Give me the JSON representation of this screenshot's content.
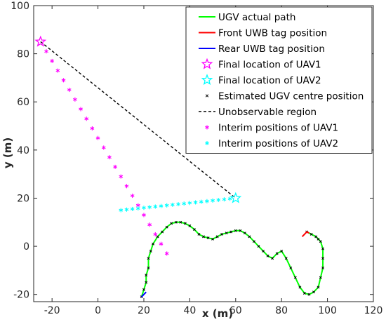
{
  "chart_data": {
    "type": "scatter",
    "xlabel": "x (m)",
    "ylabel": "y (m)",
    "xlim": [
      -28,
      120
    ],
    "ylim": [
      -23,
      100
    ],
    "xticks": [
      -20,
      0,
      20,
      40,
      60,
      80,
      100,
      120
    ],
    "yticks": [
      -20,
      0,
      20,
      40,
      60,
      80,
      100
    ],
    "tick_labels_x": [
      "-20",
      "0",
      "20",
      "40",
      "60",
      "80",
      "100",
      "120"
    ],
    "tick_labels_y": [
      "-20",
      "0",
      "20",
      "40",
      "60",
      "80",
      "100"
    ],
    "grid": false,
    "legend_position": "top-right",
    "colors": {
      "ugv_path": "#00ff00",
      "front_tag": "#ff0000",
      "rear_tag": "#0000ff",
      "uav1": "#ff00ff",
      "uav2": "#00ffff",
      "ugv_centre": "#000000",
      "unobservable": "#000000"
    },
    "series": [
      {
        "name": "UGV actual path",
        "kind": "line",
        "x": [
          19,
          20,
          21,
          21,
          22,
          22,
          23,
          24,
          26,
          28,
          30,
          32,
          34,
          36,
          38,
          40,
          42,
          44,
          46,
          48,
          50,
          52,
          54,
          56,
          58,
          60,
          62,
          64,
          66,
          68,
          70,
          72,
          74,
          76,
          78,
          80,
          82,
          84,
          86,
          88,
          90,
          92,
          94,
          96,
          97,
          98,
          98,
          98,
          97,
          96,
          95,
          93,
          91
        ],
        "y": [
          -21,
          -18,
          -15,
          -12,
          -9,
          -5,
          -2,
          1,
          4,
          6,
          8,
          9.5,
          10,
          10,
          9.5,
          8.5,
          7,
          5,
          4,
          3.5,
          3,
          4,
          5,
          5.5,
          6,
          6.5,
          6.5,
          5.5,
          4,
          2,
          0,
          -2,
          -4,
          -5,
          -3,
          -2,
          -5,
          -9,
          -13,
          -17,
          -19.5,
          -20,
          -19,
          -17,
          -13,
          -9,
          -5,
          -1,
          2,
          3,
          4,
          5,
          6
        ]
      },
      {
        "name": "Front UWB tag position",
        "kind": "line",
        "x": [
          89,
          90,
          91,
          92
        ],
        "y": [
          4,
          5,
          6,
          5.5
        ]
      },
      {
        "name": "Rear UWB tag position",
        "kind": "line",
        "x": [
          19,
          20,
          21
        ],
        "y": [
          -21,
          -20,
          -19
        ]
      },
      {
        "name": "Final location of UAV1",
        "kind": "star",
        "x": [
          -25
        ],
        "y": [
          85
        ]
      },
      {
        "name": "Final location of UAV2",
        "kind": "star",
        "x": [
          60
        ],
        "y": [
          20
        ]
      },
      {
        "name": "Estimated UGV centre position",
        "kind": "marker",
        "x": [
          19,
          20,
          21,
          21,
          22,
          22,
          23,
          24,
          26,
          28,
          30,
          32,
          34,
          36,
          38,
          40,
          42,
          44,
          46,
          48,
          50,
          52,
          54,
          56,
          58,
          60,
          62,
          64,
          66,
          68,
          70,
          72,
          74,
          76,
          78,
          80,
          82,
          84,
          86,
          88,
          90,
          92,
          94,
          96,
          97,
          98,
          98,
          98,
          97,
          96,
          95,
          93,
          91
        ],
        "y": [
          -21,
          -18,
          -15,
          -12,
          -9,
          -5,
          -2,
          1,
          4,
          6,
          8,
          9.5,
          10,
          10,
          9.5,
          8.5,
          7,
          5,
          4,
          3.5,
          3,
          4,
          5,
          5.5,
          6,
          6.5,
          6.5,
          5.5,
          4,
          2,
          0,
          -2,
          -4,
          -5,
          -3,
          -2,
          -5,
          -9,
          -13,
          -17,
          -19.5,
          -20,
          -19,
          -17,
          -13,
          -9,
          -5,
          -1,
          2,
          3,
          4,
          5,
          6
        ]
      },
      {
        "name": "Unobservable region",
        "kind": "dashed",
        "x": [
          -25,
          60
        ],
        "y": [
          85,
          20
        ]
      },
      {
        "name": "Interim positions of UAV1",
        "kind": "asterisk",
        "x": [
          -22.5,
          -20,
          -17.5,
          -15,
          -12.5,
          -10,
          -7.5,
          -5,
          -2.5,
          0,
          2.5,
          5,
          7.5,
          10,
          12.5,
          15,
          17.5,
          20,
          22.5,
          25,
          27.5,
          30
        ],
        "y": [
          81,
          77,
          73,
          69,
          65,
          61,
          57,
          53,
          49,
          45,
          41,
          37,
          33,
          29,
          25,
          21,
          17,
          13,
          9,
          5,
          1,
          -3
        ]
      },
      {
        "name": "Interim positions of UAV2",
        "kind": "asterisk",
        "x": [
          10,
          12.5,
          15,
          17.5,
          20,
          22.5,
          25,
          27.5,
          30,
          32.5,
          35,
          37.5,
          40,
          42.5,
          45,
          47.5,
          50,
          52.5,
          55,
          57.5
        ],
        "y": [
          15,
          15.25,
          15.5,
          15.75,
          16,
          16.25,
          16.5,
          16.75,
          17,
          17.25,
          17.5,
          17.75,
          18,
          18.25,
          18.5,
          18.75,
          19,
          19.25,
          19.5,
          19.75
        ]
      }
    ]
  }
}
